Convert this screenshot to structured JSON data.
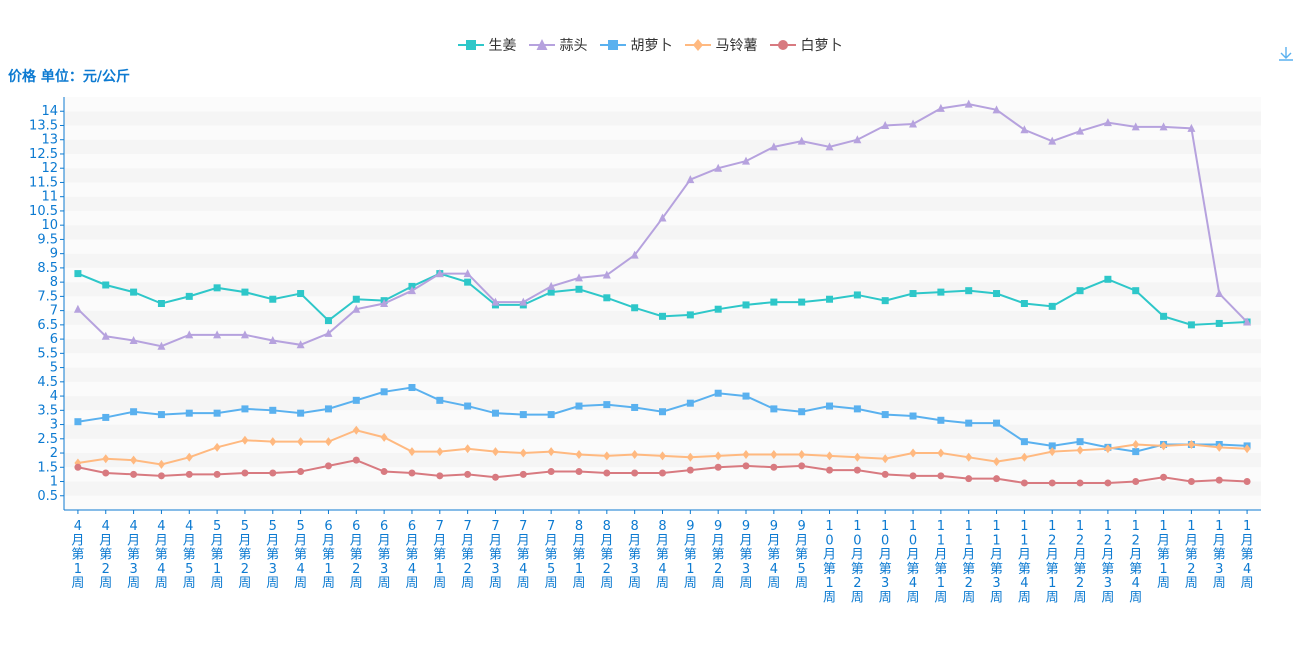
{
  "unit_label": "价格 单位：元/公斤",
  "chart_data": {
    "type": "line",
    "title": "",
    "ylabel": "价格 单位：元/公斤",
    "xlabel": "",
    "ylim": [
      0,
      14.5
    ],
    "yticks": [
      0.5,
      1,
      1.5,
      2,
      2.5,
      3,
      3.5,
      4,
      4.5,
      5,
      5.5,
      6,
      6.5,
      7,
      7.5,
      8,
      8.5,
      9,
      9.5,
      10,
      10.5,
      11,
      11.5,
      12,
      12.5,
      13,
      13.5,
      14
    ],
    "grid": true,
    "legend_position": "top-center",
    "categories": [
      "4月第1周",
      "4月第2周",
      "4月第3周",
      "4月第4周",
      "4月第5周",
      "5月第1周",
      "5月第2周",
      "5月第3周",
      "5月第4周",
      "6月第1周",
      "6月第2周",
      "6月第3周",
      "6月第4周",
      "7月第1周",
      "7月第2周",
      "7月第3周",
      "7月第4周",
      "7月第5周",
      "8月第1周",
      "8月第2周",
      "8月第3周",
      "8月第4周",
      "9月第1周",
      "9月第2周",
      "9月第3周",
      "9月第4周",
      "9月第5周",
      "10月第1周",
      "10月第2周",
      "10月第3周",
      "10月第4周",
      "11月第1周",
      "11月第2周",
      "11月第3周",
      "11月第4周",
      "12月第1周",
      "12月第2周",
      "12月第3周",
      "12月第4周",
      "1月第1周",
      "1月第2周",
      "1月第3周",
      "1月第4周"
    ],
    "series": [
      {
        "name": "生姜",
        "color": "#2ec7c9",
        "marker": "square",
        "values": [
          8.3,
          7.9,
          7.65,
          7.25,
          7.5,
          7.8,
          7.65,
          7.4,
          7.6,
          6.65,
          7.4,
          7.35,
          7.85,
          8.3,
          8.0,
          7.2,
          7.2,
          7.65,
          7.75,
          7.45,
          7.1,
          6.8,
          6.85,
          7.05,
          7.2,
          7.3,
          7.3,
          7.4,
          7.55,
          7.35,
          7.6,
          7.65,
          7.7,
          7.6,
          7.25,
          7.15,
          7.7,
          8.1,
          7.7,
          6.8,
          6.5,
          6.55,
          6.6
        ]
      },
      {
        "name": "蒜头",
        "color": "#b6a2de",
        "marker": "triangle",
        "values": [
          7.05,
          6.1,
          5.95,
          5.75,
          6.15,
          6.15,
          6.15,
          5.95,
          5.8,
          6.2,
          7.05,
          7.25,
          7.7,
          8.3,
          8.3,
          7.3,
          7.3,
          7.85,
          8.15,
          8.25,
          8.95,
          10.25,
          11.6,
          12.0,
          12.25,
          12.75,
          12.95,
          12.75,
          13.0,
          13.5,
          13.55,
          14.1,
          14.25,
          14.05,
          13.35,
          12.95,
          13.3,
          13.6,
          13.45,
          13.45,
          13.4,
          7.6,
          6.6
        ]
      },
      {
        "name": "胡萝卜",
        "color": "#5ab1ef",
        "marker": "square",
        "values": [
          3.1,
          3.25,
          3.45,
          3.35,
          3.4,
          3.4,
          3.55,
          3.5,
          3.4,
          3.55,
          3.85,
          4.15,
          4.3,
          3.85,
          3.65,
          3.4,
          3.35,
          3.35,
          3.65,
          3.7,
          3.6,
          3.45,
          3.75,
          4.1,
          4.0,
          3.55,
          3.45,
          3.65,
          3.55,
          3.35,
          3.3,
          3.15,
          3.05,
          3.05,
          2.4,
          2.25,
          2.4,
          2.2,
          2.05,
          2.3,
          2.3,
          2.3,
          2.25
        ]
      },
      {
        "name": "马铃薯",
        "color": "#ffb980",
        "marker": "diamond",
        "values": [
          1.65,
          1.8,
          1.75,
          1.6,
          1.85,
          2.2,
          2.45,
          2.4,
          2.4,
          2.4,
          2.8,
          2.55,
          2.05,
          2.05,
          2.15,
          2.05,
          2.0,
          2.05,
          1.95,
          1.9,
          1.95,
          1.9,
          1.85,
          1.9,
          1.95,
          1.95,
          1.95,
          1.9,
          1.85,
          1.8,
          2.0,
          2.0,
          1.85,
          1.7,
          1.85,
          2.05,
          2.1,
          2.15,
          2.3,
          2.25,
          2.3,
          2.2,
          2.15
        ]
      },
      {
        "name": "白萝卜",
        "color": "#d87a80",
        "marker": "circle",
        "values": [
          1.5,
          1.3,
          1.25,
          1.2,
          1.25,
          1.25,
          1.3,
          1.3,
          1.35,
          1.55,
          1.75,
          1.35,
          1.3,
          1.2,
          1.25,
          1.15,
          1.25,
          1.35,
          1.35,
          1.3,
          1.3,
          1.3,
          1.4,
          1.5,
          1.55,
          1.5,
          1.55,
          1.4,
          1.4,
          1.25,
          1.2,
          1.2,
          1.1,
          1.1,
          0.95,
          0.95,
          0.95,
          0.95,
          1.0,
          1.15,
          1.0,
          1.05,
          1.0
        ]
      }
    ]
  }
}
